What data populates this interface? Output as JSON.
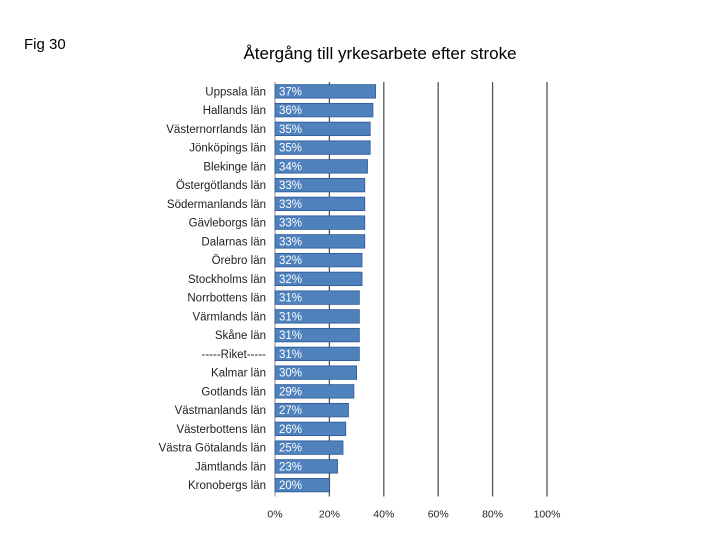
{
  "figure_label": "Fig 30",
  "chart_data": {
    "type": "bar",
    "orientation": "horizontal",
    "title": "Återgång till yrkesarbete efter stroke",
    "categories": [
      "Uppsala län",
      "Hallands län",
      "Västernorrlands län",
      "Jönköpings län",
      "Blekinge län",
      "Östergötlands län",
      "Södermanlands län",
      "Gävleborgs län",
      "Dalarnas län",
      "Örebro län",
      "Stockholms län",
      "Norrbottens län",
      "Värmlands län",
      "Skåne län",
      "-----Riket-----",
      "Kalmar län",
      "Gotlands län",
      "Västmanlands län",
      "Västerbottens län",
      "Västra Götalands län",
      "Jämtlands län",
      "Kronobergs län"
    ],
    "values": [
      37,
      36,
      35,
      35,
      34,
      33,
      33,
      33,
      33,
      32,
      32,
      31,
      31,
      31,
      31,
      30,
      29,
      27,
      26,
      25,
      23,
      20
    ],
    "data_labels": [
      "37%",
      "36%",
      "35%",
      "35%",
      "34%",
      "33%",
      "33%",
      "33%",
      "33%",
      "32%",
      "32%",
      "31%",
      "31%",
      "31%",
      "31%",
      "30%",
      "29%",
      "27%",
      "26%",
      "25%",
      "23%",
      "20%"
    ],
    "xlim": [
      0,
      100
    ],
    "x_ticks": [
      0,
      20,
      40,
      60,
      80,
      100
    ],
    "x_tick_labels": [
      "0%",
      "20%",
      "40%",
      "60%",
      "80%",
      "100%"
    ],
    "grid": "vertical",
    "bar_color": "#4f81bd",
    "bar_edge_color": "#2c5a96",
    "grid_color": "#555555"
  }
}
